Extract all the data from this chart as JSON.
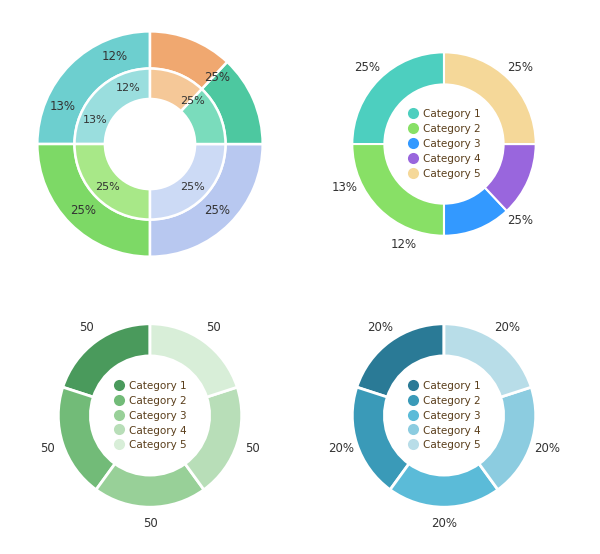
{
  "chart1": {
    "values": [
      25,
      25,
      25,
      13,
      12
    ],
    "outer_colors": [
      "#6DCFCF",
      "#7DD966",
      "#B8C8F0",
      "#4DC8A0",
      "#F0A870"
    ],
    "inner_colors": [
      "#9ADEDE",
      "#A8E888",
      "#CCDAF5",
      "#7ADCBC",
      "#F5C898"
    ],
    "start_angle": 90
  },
  "chart2": {
    "values": [
      25,
      25,
      12,
      13,
      25
    ],
    "colors": [
      "#4DCFBF",
      "#88E066",
      "#3399FF",
      "#9966DD",
      "#F5D899"
    ],
    "labels": [
      "25%",
      "25%",
      "12%",
      "13%",
      "25%"
    ],
    "legend_labels": [
      "Category 1",
      "Category 2",
      "Category 3",
      "Category 4",
      "Category 5"
    ],
    "start_angle": 90
  },
  "chart3": {
    "values": [
      50,
      50,
      50,
      50,
      50
    ],
    "colors": [
      "#4A9A5C",
      "#72BB78",
      "#98D098",
      "#B8DEB8",
      "#D8EED8"
    ],
    "labels": [
      "50",
      "50",
      "50",
      "50",
      "50"
    ],
    "legend_labels": [
      "Category 1",
      "Category 2",
      "Category 3",
      "Category 4",
      "Category 5"
    ],
    "start_angle": 90
  },
  "chart4": {
    "values": [
      20,
      20,
      20,
      20,
      20
    ],
    "colors": [
      "#2A7A96",
      "#3A9AB8",
      "#5BBBD8",
      "#8CCCE0",
      "#B8DDE8"
    ],
    "labels": [
      "20%",
      "20%",
      "20%",
      "20%",
      "20%"
    ],
    "legend_labels": [
      "Category 1",
      "Category 2",
      "Category 3",
      "Category 4",
      "Category 5"
    ],
    "start_angle": 90
  },
  "legend_text_color": "#5A3E1B",
  "pct_text_color": "#333333"
}
